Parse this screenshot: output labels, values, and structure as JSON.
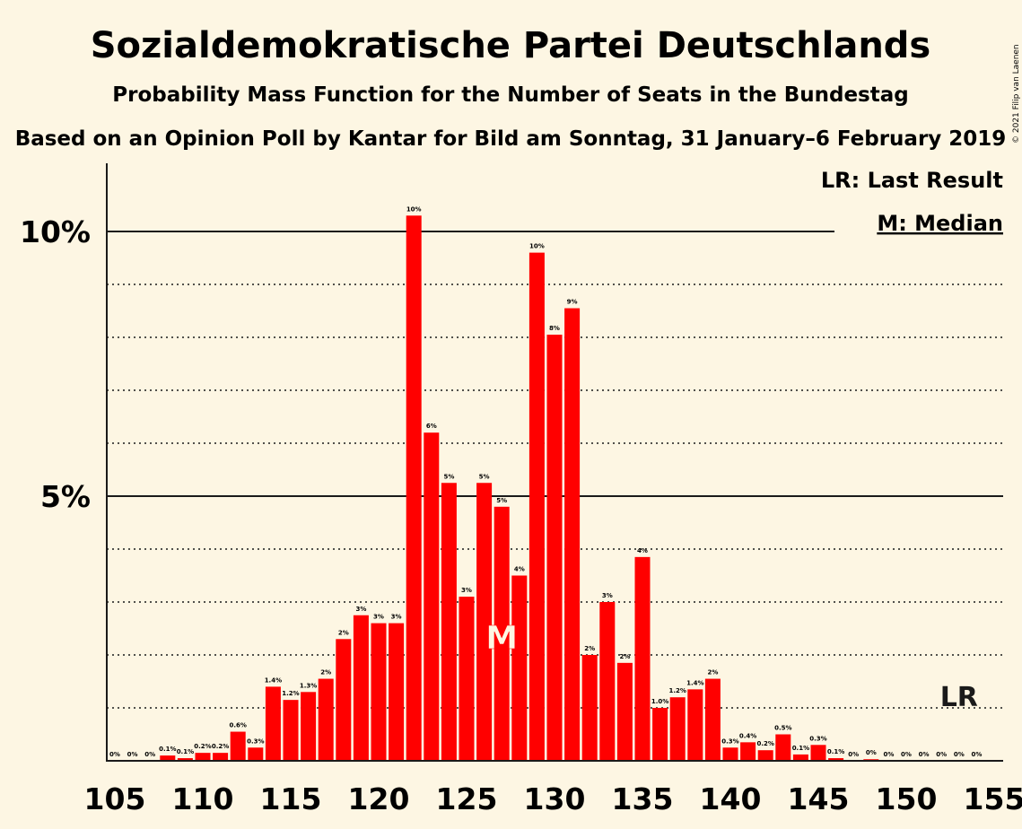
{
  "chart_data": {
    "type": "bar",
    "title": "Sozialdemokratische Partei Deutschlands",
    "subtitle": "Probability Mass Function for the Number of Seats in the Bundestag",
    "subtitle2": "Based on an Opinion Poll by Kantar for Bild am Sonntag, 31 January–6 February 2019",
    "copyright": "© 2021 Filip van Laenen",
    "legend": {
      "last_result": "LR: Last Result",
      "median": "M: Median"
    },
    "markers": {
      "median_label": "M",
      "median_seat": 127,
      "last_result_label": "LR",
      "last_result_seat": 153
    },
    "ylim": [
      0,
      11
    ],
    "y_ticks": [
      {
        "value": 5,
        "label": "5%"
      },
      {
        "value": 10,
        "label": "10%"
      }
    ],
    "x_ticks": [
      105,
      110,
      115,
      120,
      125,
      130,
      135,
      140,
      145,
      150,
      155
    ],
    "bar_color": "#ff0000",
    "categories": [
      105,
      106,
      107,
      108,
      109,
      110,
      111,
      112,
      113,
      114,
      115,
      116,
      117,
      118,
      119,
      120,
      121,
      122,
      123,
      124,
      125,
      126,
      127,
      128,
      129,
      130,
      131,
      132,
      133,
      134,
      135,
      136,
      137,
      138,
      139,
      140,
      141,
      142,
      143,
      144,
      145,
      146,
      147,
      148,
      149,
      150,
      151,
      152,
      153,
      154
    ],
    "values": [
      0,
      0,
      0,
      0.1,
      0.05,
      0.15,
      0.15,
      0.55,
      0.25,
      1.4,
      1.15,
      1.3,
      1.55,
      2.3,
      2.75,
      2.6,
      2.6,
      10.3,
      6.2,
      5.25,
      3.1,
      5.25,
      4.8,
      3.5,
      9.6,
      8.05,
      8.55,
      2.0,
      3.0,
      1.85,
      3.85,
      1.0,
      1.2,
      1.35,
      1.55,
      0.25,
      0.35,
      0.2,
      0.5,
      0.12,
      0.3,
      0.05,
      0,
      0.03,
      0,
      0,
      0,
      0,
      0,
      0
    ],
    "labels": [
      "0%",
      "0%",
      "0%",
      "0.1%",
      "0.1%",
      "0.2%",
      "0.2%",
      "0.6%",
      "0.3%",
      "1.4%",
      "1.2%",
      "1.3%",
      "2%",
      "2%",
      "3%",
      "3%",
      "3%",
      "10%",
      "6%",
      "5%",
      "3%",
      "5%",
      "5%",
      "4%",
      "10%",
      "8%",
      "9%",
      "2%",
      "3%",
      "2%",
      "4%",
      "1.0%",
      "1.2%",
      "1.4%",
      "2%",
      "0.3%",
      "0.4%",
      "0.2%",
      "0.5%",
      "0.1%",
      "0.3%",
      "0.1%",
      "0%",
      "0%",
      "0%",
      "0%",
      "0%",
      "0%",
      "0%",
      "0%"
    ]
  }
}
